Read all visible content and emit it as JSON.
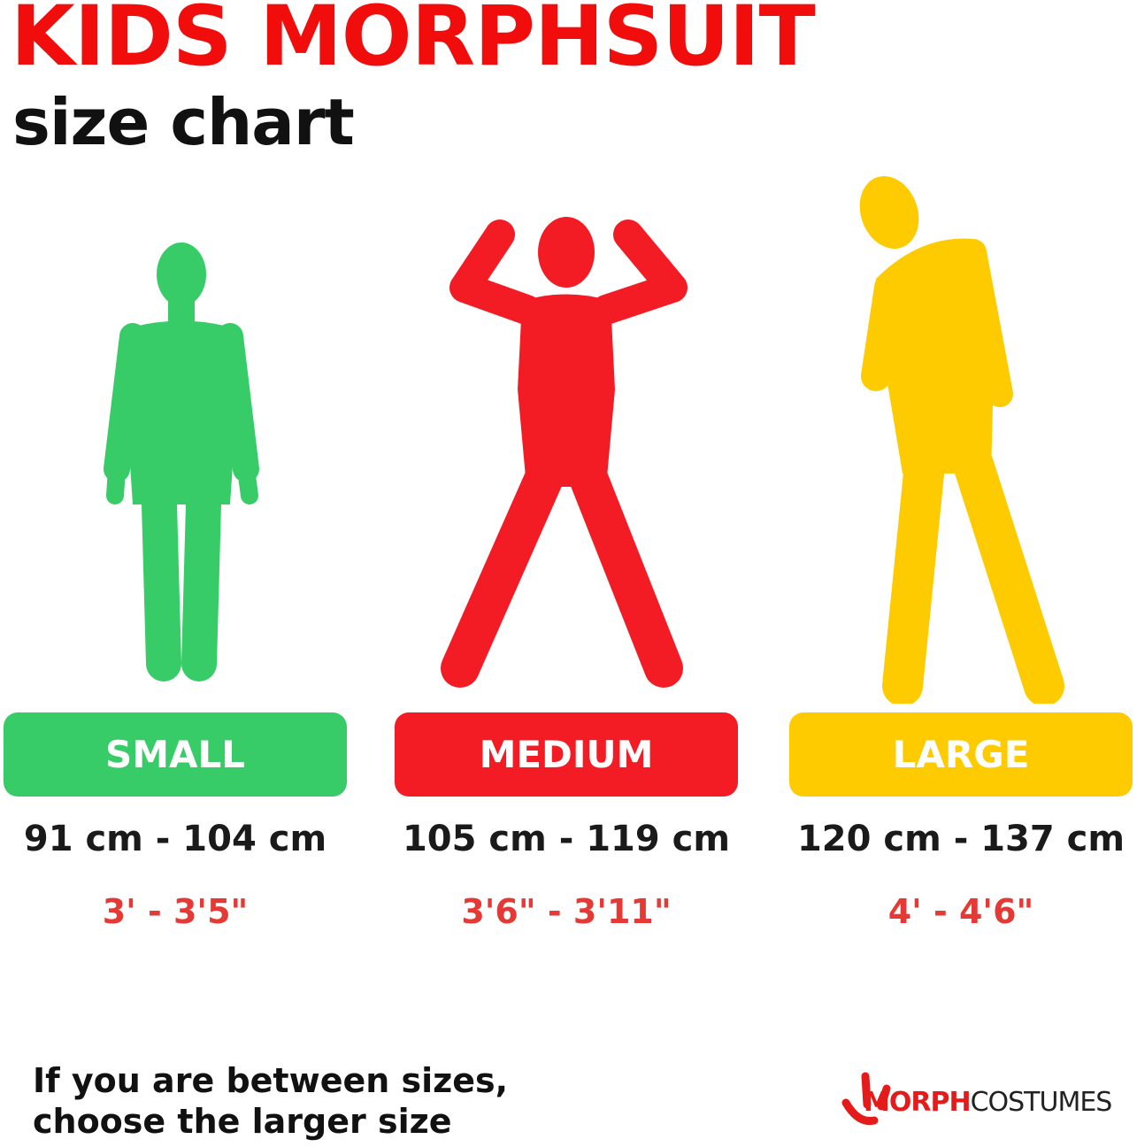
{
  "title": "KIDS MORPHSUIT",
  "subtitle": "size chart",
  "colors": {
    "title": "#f20d0d",
    "small": "#37cc67",
    "medium": "#f41c24",
    "large": "#fecb00",
    "imperial_text": "#e53935"
  },
  "sizes": [
    {
      "label": "SMALL",
      "cm": "91 cm - 104 cm",
      "ft": "3' - 3'5\"",
      "figure": "standing-child-silhouette"
    },
    {
      "label": "MEDIUM",
      "cm": "105 cm - 119 cm",
      "ft": "3'6\" - 3'11\"",
      "figure": "flexing-child-silhouette"
    },
    {
      "label": "LARGE",
      "cm": "120 cm - 137 cm",
      "ft": "4' - 4'6\"",
      "figure": "posing-child-silhouette"
    }
  ],
  "note": {
    "line1": "If you are between sizes,",
    "line2": "choose the larger size"
  },
  "logo": {
    "bold": "MORPH",
    "light": "COSTUMES"
  }
}
